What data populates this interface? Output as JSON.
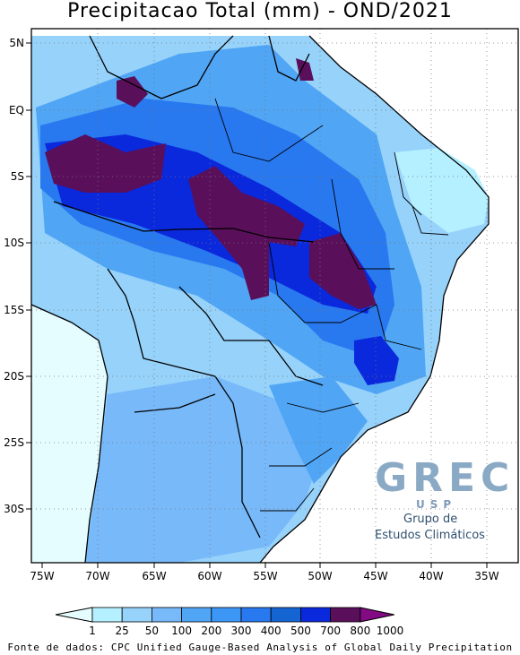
{
  "title": "Precipitacao Total (mm) - OND/2021",
  "map": {
    "lat_ticks": [
      "5N",
      "EQ",
      "5S",
      "10S",
      "15S",
      "20S",
      "25S",
      "30S"
    ],
    "lon_ticks": [
      "75W",
      "70W",
      "65W",
      "60W",
      "55W",
      "50W",
      "45W",
      "40W",
      "35W"
    ]
  },
  "colorbar": {
    "labels": [
      "1",
      "25",
      "50",
      "100",
      "200",
      "300",
      "400",
      "500",
      "700",
      "800",
      "1000"
    ],
    "colors": [
      "#e6fdff",
      "#b4f0ff",
      "#96d2fa",
      "#78b9fa",
      "#50a5f5",
      "#3c96f5",
      "#2878f0",
      "#1464d2",
      "#0a28dc",
      "#5a0f5a",
      "#820a82"
    ]
  },
  "colors": {
    "land_low": "#e6fdff",
    "ocean": "#ffffff",
    "border": "#000000"
  },
  "logo": {
    "main": "GREC",
    "sub": "USP",
    "line1": "Grupo de",
    "line2": "Estudos Climáticos"
  },
  "source": "Fonte de dados: CPC Unified Gauge-Based Analysis of Global Daily Precipitation"
}
